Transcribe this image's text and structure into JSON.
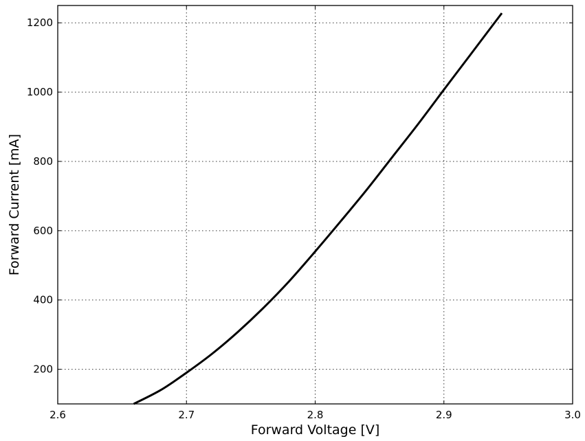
{
  "chart_data": {
    "type": "line",
    "title": "",
    "xlabel": "Forward Voltage [V]",
    "ylabel": "Forward Current [mA]",
    "xlim": [
      2.6,
      3.0
    ],
    "ylim": [
      100,
      1250
    ],
    "xticks": [
      2.6,
      2.7,
      2.8,
      2.9,
      3.0
    ],
    "xtick_labels": [
      "2.6",
      "2.7",
      "2.8",
      "2.9",
      "3.0"
    ],
    "yticks": [
      200,
      400,
      600,
      800,
      1000,
      1200
    ],
    "ytick_labels": [
      "200",
      "400",
      "600",
      "800",
      "1000",
      "1200"
    ],
    "grid": true,
    "series": [
      {
        "color": "#000000",
        "x": [
          2.659,
          2.68,
          2.7,
          2.72,
          2.74,
          2.76,
          2.78,
          2.8,
          2.82,
          2.84,
          2.86,
          2.88,
          2.9,
          2.92,
          2.945
        ],
        "y": [
          100,
          140,
          190,
          245,
          308,
          378,
          455,
          540,
          628,
          718,
          813,
          908,
          1007,
          1105,
          1228
        ]
      }
    ]
  }
}
